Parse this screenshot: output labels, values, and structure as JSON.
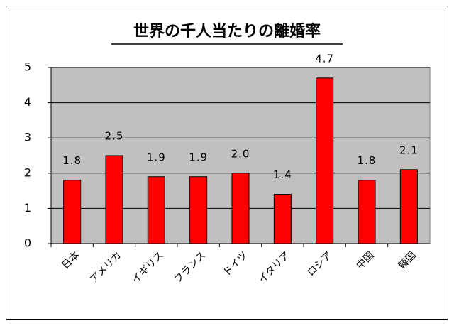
{
  "chart_data": {
    "type": "bar",
    "title": "世界の千人当たりの離婚率",
    "categories": [
      "日本",
      "アメリカ",
      "イギリス",
      "フランス",
      "ドイツ",
      "イタリア",
      "ロシア",
      "中国",
      "韓国"
    ],
    "values": [
      1.8,
      2.5,
      1.9,
      1.9,
      2.0,
      1.4,
      4.7,
      1.8,
      2.1
    ],
    "value_labels": [
      "1.8",
      "2.5",
      "1.9",
      "1.9",
      "2.0",
      "1.4",
      "4.7",
      "1.8",
      "2.1"
    ],
    "color": "#ff0000",
    "ylim": [
      0,
      5
    ],
    "yticks": [
      0,
      1,
      2,
      3,
      4,
      5
    ],
    "grid": true
  }
}
